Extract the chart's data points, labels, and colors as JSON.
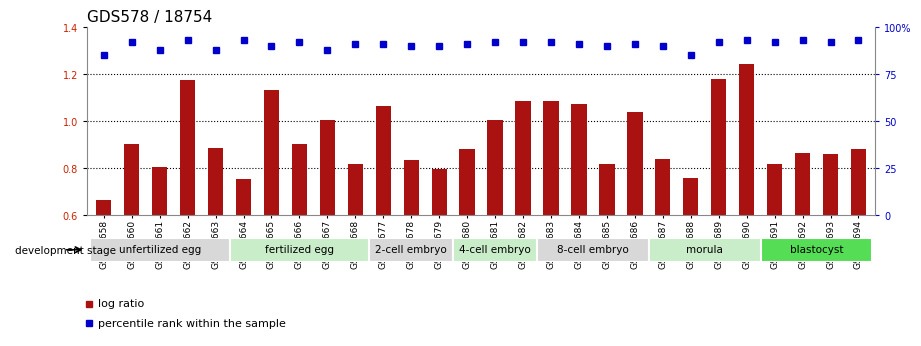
{
  "title": "GDS578 / 18754",
  "categories": [
    "GSM14658",
    "GSM14660",
    "GSM14661",
    "GSM14662",
    "GSM14663",
    "GSM14664",
    "GSM14665",
    "GSM14666",
    "GSM14667",
    "GSM14668",
    "GSM14677",
    "GSM14678",
    "GSM14679",
    "GSM14680",
    "GSM14681",
    "GSM14682",
    "GSM14683",
    "GSM14684",
    "GSM14685",
    "GSM14686",
    "GSM14687",
    "GSM14688",
    "GSM14689",
    "GSM14690",
    "GSM14691",
    "GSM14692",
    "GSM14693",
    "GSM14694"
  ],
  "log_ratio": [
    0.665,
    0.905,
    0.805,
    1.175,
    0.885,
    0.755,
    1.135,
    0.905,
    1.005,
    0.82,
    1.065,
    0.835,
    0.795,
    0.88,
    1.005,
    1.085,
    1.085,
    1.075,
    0.82,
    1.04,
    0.84,
    0.76,
    1.18,
    1.245,
    0.82,
    0.865,
    0.86,
    0.88
  ],
  "percentile_rank": [
    85,
    92,
    88,
    93,
    88,
    93,
    90,
    92,
    88,
    91,
    91,
    90,
    90,
    91,
    92,
    92,
    92,
    91,
    90,
    91,
    90,
    85,
    92,
    93,
    92,
    93,
    92,
    93
  ],
  "bar_color": "#aa1111",
  "dot_color": "#0000cc",
  "ylim_left": [
    0.6,
    1.4
  ],
  "ylim_right": [
    0,
    100
  ],
  "yticks_left": [
    0.6,
    0.8,
    1.0,
    1.2,
    1.4
  ],
  "yticks_right": [
    0,
    25,
    50,
    75,
    100
  ],
  "ytick_labels_right": [
    "0",
    "25",
    "50",
    "75",
    "100%"
  ],
  "hlines": [
    0.8,
    1.0,
    1.2
  ],
  "stages": [
    {
      "label": "unfertilized egg",
      "start": 0,
      "end": 5,
      "color": "#d8d8d8"
    },
    {
      "label": "fertilized egg",
      "start": 5,
      "end": 10,
      "color": "#c8edc8"
    },
    {
      "label": "2-cell embryo",
      "start": 10,
      "end": 13,
      "color": "#d8d8d8"
    },
    {
      "label": "4-cell embryo",
      "start": 13,
      "end": 16,
      "color": "#c8edc8"
    },
    {
      "label": "8-cell embryo",
      "start": 16,
      "end": 20,
      "color": "#d8d8d8"
    },
    {
      "label": "morula",
      "start": 20,
      "end": 24,
      "color": "#c8edc8"
    },
    {
      "label": "blastocyst",
      "start": 24,
      "end": 28,
      "color": "#55dd55"
    }
  ],
  "legend_items": [
    {
      "label": "log ratio",
      "color": "#aa1111"
    },
    {
      "label": "percentile rank within the sample",
      "color": "#0000cc"
    }
  ],
  "dev_stage_label": "development stage",
  "background_color": "#ffffff",
  "title_fontsize": 11,
  "tick_fontsize": 7,
  "bar_width": 0.55
}
